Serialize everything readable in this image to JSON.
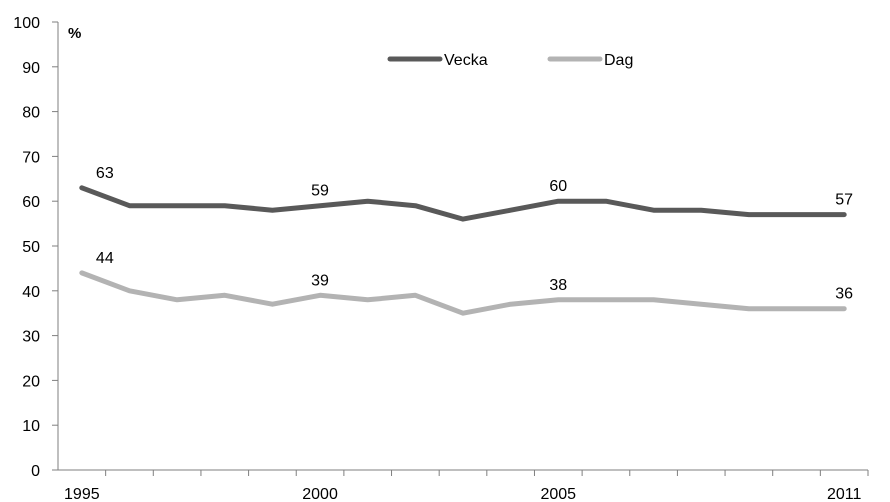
{
  "chart_data": {
    "type": "line",
    "title": "",
    "xlabel": "",
    "ylabel": "%",
    "ylim": [
      0,
      100
    ],
    "yticks": [
      0,
      10,
      20,
      30,
      40,
      50,
      60,
      70,
      80,
      90,
      100
    ],
    "yticks_labels": [
      "0",
      "10",
      "20",
      "30",
      "40",
      "50",
      "60",
      "70",
      "80",
      "90",
      "100"
    ],
    "x": [
      1995,
      1996,
      1997,
      1998,
      1999,
      2000,
      2001,
      2002,
      2003,
      2004,
      2005,
      2006,
      2007,
      2008,
      2009,
      2010,
      2011
    ],
    "xtick_labels": [
      {
        "year": 1995,
        "label": "1995"
      },
      {
        "year": 2000,
        "label": "2000"
      },
      {
        "year": 2005,
        "label": "2005"
      },
      {
        "year": 2011,
        "label": "2011"
      }
    ],
    "grid": false,
    "legend_position": "top-center",
    "series": [
      {
        "name": "Vecka",
        "color": "#595959",
        "values": [
          63,
          59,
          59,
          59,
          58,
          59,
          60,
          59,
          56,
          58,
          60,
          60,
          58,
          58,
          57,
          57,
          57
        ],
        "data_labels": [
          {
            "year": 1995,
            "label": "63"
          },
          {
            "year": 2000,
            "label": "59"
          },
          {
            "year": 2005,
            "label": "60"
          },
          {
            "year": 2011,
            "label": "57"
          }
        ]
      },
      {
        "name": "Dag",
        "color": "#b3b3b3",
        "values": [
          44,
          40,
          38,
          39,
          37,
          39,
          38,
          39,
          35,
          37,
          38,
          38,
          38,
          37,
          36,
          36,
          36
        ],
        "data_labels": [
          {
            "year": 1995,
            "label": "44"
          },
          {
            "year": 2000,
            "label": "39"
          },
          {
            "year": 2005,
            "label": "38"
          },
          {
            "year": 2011,
            "label": "36"
          }
        ]
      }
    ]
  }
}
